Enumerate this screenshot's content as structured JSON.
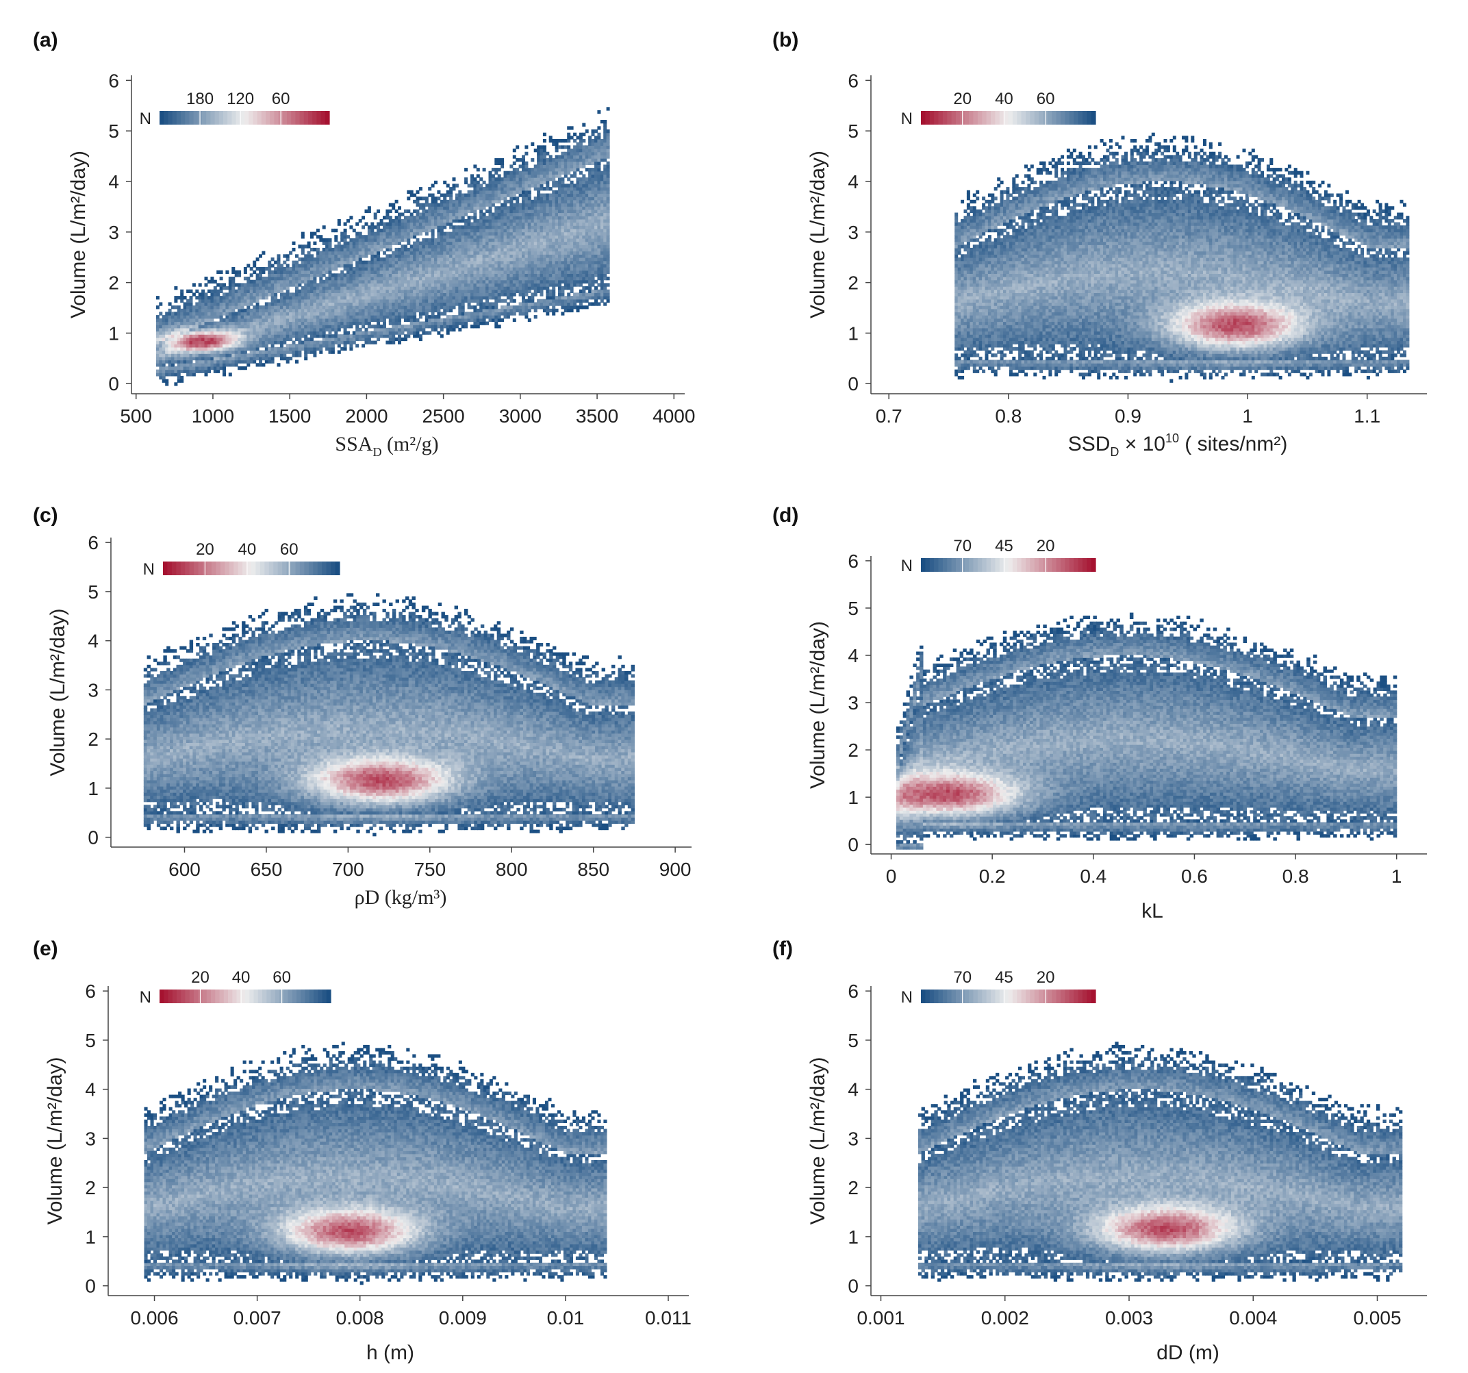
{
  "figure": {
    "panel_count": 6
  },
  "colors": {
    "low": "#1b4f83",
    "mid": "#eeeeee",
    "high": "#a51230"
  },
  "chart_data": [
    {
      "id": "a",
      "type": "heatmap",
      "panel_label": "(a)",
      "xlabel": "SSA",
      "xlabel_sub": "D",
      "xlabel_tail": " (m²/g)",
      "xlabel_font": "serif",
      "ylabel": "Volume (L/m²/day)",
      "xlim": [
        470,
        4070
      ],
      "ylim": [
        -0.2,
        6.1
      ],
      "xticks": [
        500,
        1000,
        1500,
        2000,
        2500,
        3000,
        3500,
        4000
      ],
      "xtick_labels": [
        "500",
        "1000",
        "1500",
        "2000",
        "2500",
        "3000",
        "3500",
        "4000"
      ],
      "yticks": [
        0,
        1,
        2,
        3,
        4,
        5,
        6
      ],
      "ytick_labels": [
        "0",
        "1",
        "2",
        "3",
        "4",
        "5",
        "6"
      ],
      "colorbar": {
        "title": "N",
        "ticks": [
          "180",
          "120",
          "60"
        ],
        "reversed": true
      },
      "density": {
        "x_range": [
          630,
          3580
        ],
        "trend": "linear",
        "trend_start": 0.55,
        "trend_end": 3.2,
        "spread_start": 0.25,
        "spread_end": 1.3,
        "peak_x": 920,
        "peak_y": 0.85
      }
    },
    {
      "id": "b",
      "type": "heatmap",
      "panel_label": "(b)",
      "xlabel": "SSD",
      "xlabel_sub": "D",
      "xlabel_tail": " × 10",
      "xlabel_sup": "10",
      "xlabel_tail2": " ( sites/nm²)",
      "xlabel_font": "sans",
      "ylabel": "Volume (L/m²/day)",
      "xlim": [
        0.685,
        1.15
      ],
      "ylim": [
        -0.2,
        6.1
      ],
      "xticks": [
        0.7,
        0.8,
        0.9,
        1.0,
        1.1
      ],
      "xtick_labels": [
        "0.7",
        "0.8",
        "0.9",
        "1",
        "1.1"
      ],
      "yticks": [
        0,
        1,
        2,
        3,
        4,
        5,
        6
      ],
      "ytick_labels": [
        "0",
        "1",
        "2",
        "3",
        "4",
        "5",
        "6"
      ],
      "colorbar": {
        "title": "N",
        "ticks": [
          "20",
          "40",
          "60"
        ],
        "reversed": false
      },
      "density": {
        "x_range": [
          0.755,
          1.135
        ],
        "trend": "flat",
        "peak_x": 0.99,
        "peak_y": 1.15
      }
    },
    {
      "id": "c",
      "type": "heatmap",
      "panel_label": "(c)",
      "xlabel": "ρD (kg/m³)",
      "xlabel_font": "serif",
      "ylabel": "Volume (L/m²/day)",
      "xlim": [
        555,
        910
      ],
      "ylim": [
        -0.2,
        6.1
      ],
      "xticks": [
        600,
        650,
        700,
        750,
        800,
        850,
        900
      ],
      "xtick_labels": [
        "600",
        "650",
        "700",
        "750",
        "800",
        "850",
        "900"
      ],
      "yticks": [
        0,
        1,
        2,
        3,
        4,
        5,
        6
      ],
      "ytick_labels": [
        "0",
        "1",
        "2",
        "3",
        "4",
        "5",
        "6"
      ],
      "colorbar": {
        "title": "N",
        "ticks": [
          "20",
          "40",
          "60"
        ],
        "reversed": false
      },
      "density": {
        "x_range": [
          575,
          875
        ],
        "trend": "flat",
        "peak_x": 720,
        "peak_y": 1.15
      }
    },
    {
      "id": "d",
      "type": "heatmap",
      "panel_label": "(d)",
      "xlabel": "kL",
      "xlabel_font": "sans",
      "ylabel": "Volume (L/m²/day)",
      "xlim": [
        -0.04,
        1.06
      ],
      "ylim": [
        -0.2,
        6.1
      ],
      "xticks": [
        0,
        0.2,
        0.4,
        0.6,
        0.8,
        1.0
      ],
      "xtick_labels": [
        "0",
        "0.2",
        "0.4",
        "0.6",
        "0.8",
        "1"
      ],
      "yticks": [
        0,
        1,
        2,
        3,
        4,
        5,
        6
      ],
      "ytick_labels": [
        "0",
        "1",
        "2",
        "3",
        "4",
        "5",
        "6"
      ],
      "colorbar": {
        "title": "N",
        "ticks": [
          "70",
          "45",
          "20"
        ],
        "reversed": true
      },
      "density": {
        "x_range": [
          0.01,
          1.0
        ],
        "trend": "flat",
        "peak_x": 0.11,
        "peak_y": 1.05
      }
    },
    {
      "id": "e",
      "type": "heatmap",
      "panel_label": "(e)",
      "xlabel": "h (m)",
      "xlabel_font": "sans",
      "ylabel": "Volume (L/m²/day)",
      "xlim": [
        0.00555,
        0.0112
      ],
      "ylim": [
        -0.2,
        6.1
      ],
      "xticks": [
        0.006,
        0.007,
        0.008,
        0.009,
        0.01,
        0.011
      ],
      "xtick_labels": [
        "0.006",
        "0.007",
        "0.008",
        "0.009",
        "0.01",
        "0.011"
      ],
      "yticks": [
        0,
        1,
        2,
        3,
        4,
        5,
        6
      ],
      "ytick_labels": [
        "0",
        "1",
        "2",
        "3",
        "4",
        "5",
        "6"
      ],
      "colorbar": {
        "title": "N",
        "ticks": [
          "20",
          "40",
          "60"
        ],
        "reversed": false
      },
      "density": {
        "x_range": [
          0.0059,
          0.0104
        ],
        "trend": "flat",
        "peak_x": 0.0079,
        "peak_y": 1.1
      }
    },
    {
      "id": "f",
      "type": "heatmap",
      "panel_label": "(f)",
      "xlabel": "dD (m)",
      "xlabel_font": "sans",
      "ylabel": "Volume (L/m²/day)",
      "xlim": [
        0.00092,
        0.0054
      ],
      "ylim": [
        -0.2,
        6.1
      ],
      "xticks": [
        0.001,
        0.002,
        0.003,
        0.004,
        0.005
      ],
      "xtick_labels": [
        "0.001",
        "0.002",
        "0.003",
        "0.004",
        "0.005"
      ],
      "yticks": [
        0,
        1,
        2,
        3,
        4,
        5,
        6
      ],
      "ytick_labels": [
        "0",
        "1",
        "2",
        "3",
        "4",
        "5",
        "6"
      ],
      "colorbar": {
        "title": "N",
        "ticks": [
          "70",
          "45",
          "20"
        ],
        "reversed": true
      },
      "density": {
        "x_range": [
          0.0013,
          0.0052
        ],
        "trend": "flat",
        "peak_x": 0.0033,
        "peak_y": 1.15
      }
    }
  ]
}
